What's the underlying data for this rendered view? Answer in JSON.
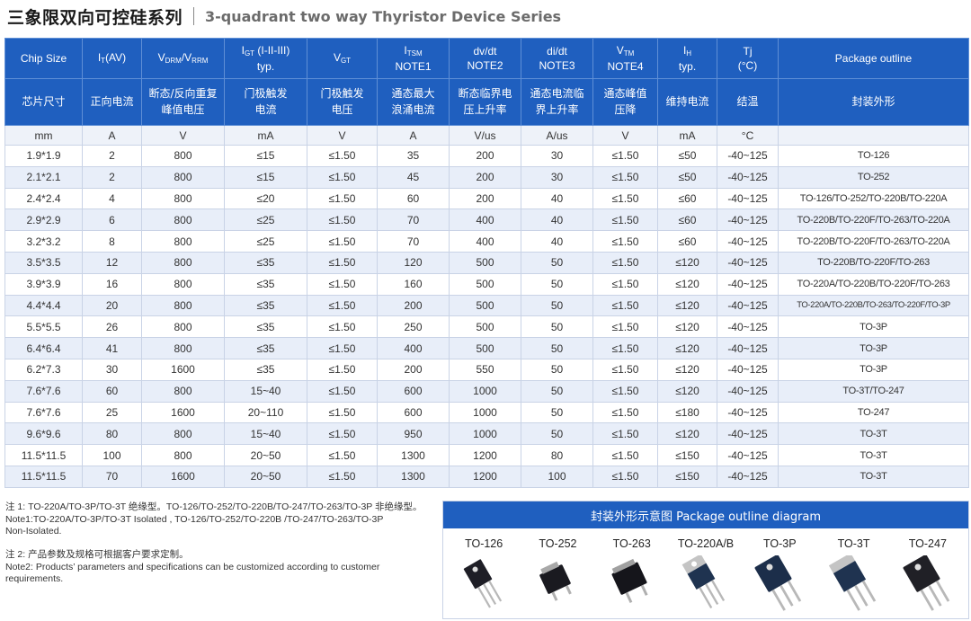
{
  "header": {
    "title_cn": "三象限双向可控硅系列",
    "title_en": "3-quadrant two way Thyristor Device Series"
  },
  "table": {
    "head_en": {
      "chip_size": "Chip Size",
      "it_main": "I",
      "it_sub": "T",
      "it_tail": "(AV)",
      "vdrm_main": "V",
      "vdrm_sub": "DRM",
      "vdrm_mid": "/V",
      "vdrm_sub2": "RRM",
      "igt_main": "I",
      "igt_sub": "GT",
      "igt_tail": " (I-II-III)",
      "igt_line2": "typ.",
      "vgt_main": "V",
      "vgt_sub": "GT",
      "itsm_main": "I",
      "itsm_sub": "TSM",
      "itsm_line2": "NOTE1",
      "dvdt": "dv/dt",
      "dvdt_line2": "NOTE2",
      "didt": "di/dt",
      "didt_line2": "NOTE3",
      "vtm_main": "V",
      "vtm_sub": "TM",
      "vtm_line2": "NOTE4",
      "ih_main": "I",
      "ih_sub": "H",
      "ih_line2": "typ.",
      "tj": "Tj",
      "tj_line2": "(°C)",
      "package": "Package outline"
    },
    "head_cn": {
      "chip_size": "芯片尺寸",
      "it": "正向电流",
      "vdrm_l1": "断态/反向重复",
      "vdrm_l2": "峰值电压",
      "igt_l1": "门极触发",
      "igt_l2": "电流",
      "vgt_l1": "门极触发",
      "vgt_l2": "电压",
      "itsm_l1": "通态最大",
      "itsm_l2": "浪涌电流",
      "dvdt_l1": "断态临界电",
      "dvdt_l2": "压上升率",
      "didt_l1": "通态电流临",
      "didt_l2": "界上升率",
      "vtm_l1": "通态峰值",
      "vtm_l2": "压降",
      "ih": "维持电流",
      "tj": "结温",
      "package": "封装外形"
    },
    "units": [
      "mm",
      "A",
      "V",
      "mA",
      "V",
      "A",
      "V/us",
      "A/us",
      "V",
      "mA",
      "°C",
      ""
    ],
    "rows": [
      [
        "1.9*1.9",
        "2",
        "800",
        "≤15",
        "≤1.50",
        "35",
        "200",
        "30",
        "≤1.50",
        "≤50",
        "-40~125",
        "TO-126"
      ],
      [
        "2.1*2.1",
        "2",
        "800",
        "≤15",
        "≤1.50",
        "45",
        "200",
        "30",
        "≤1.50",
        "≤50",
        "-40~125",
        "TO-252"
      ],
      [
        "2.4*2.4",
        "4",
        "800",
        "≤20",
        "≤1.50",
        "60",
        "200",
        "40",
        "≤1.50",
        "≤60",
        "-40~125",
        "TO-126/TO-252/TO-220B/TO-220A"
      ],
      [
        "2.9*2.9",
        "6",
        "800",
        "≤25",
        "≤1.50",
        "70",
        "400",
        "40",
        "≤1.50",
        "≤60",
        "-40~125",
        "TO-220B/TO-220F/TO-263/TO-220A"
      ],
      [
        "3.2*3.2",
        "8",
        "800",
        "≤25",
        "≤1.50",
        "70",
        "400",
        "40",
        "≤1.50",
        "≤60",
        "-40~125",
        "TO-220B/TO-220F/TO-263/TO-220A"
      ],
      [
        "3.5*3.5",
        "12",
        "800",
        "≤35",
        "≤1.50",
        "120",
        "500",
        "50",
        "≤1.50",
        "≤120",
        "-40~125",
        "TO-220B/TO-220F/TO-263"
      ],
      [
        "3.9*3.9",
        "16",
        "800",
        "≤35",
        "≤1.50",
        "160",
        "500",
        "50",
        "≤1.50",
        "≤120",
        "-40~125",
        "TO-220A/TO-220B/TO-220F/TO-263"
      ],
      [
        "4.4*4.4",
        "20",
        "800",
        "≤35",
        "≤1.50",
        "200",
        "500",
        "50",
        "≤1.50",
        "≤120",
        "-40~125",
        "TO-220A/TO-220B/TO-263/TO-220F/TO-3P"
      ],
      [
        "5.5*5.5",
        "26",
        "800",
        "≤35",
        "≤1.50",
        "250",
        "500",
        "50",
        "≤1.50",
        "≤120",
        "-40~125",
        "TO-3P"
      ],
      [
        "6.4*6.4",
        "41",
        "800",
        "≤35",
        "≤1.50",
        "400",
        "500",
        "50",
        "≤1.50",
        "≤120",
        "-40~125",
        "TO-3P"
      ],
      [
        "6.2*7.3",
        "30",
        "1600",
        "≤35",
        "≤1.50",
        "200",
        "550",
        "50",
        "≤1.50",
        "≤120",
        "-40~125",
        "TO-3P"
      ],
      [
        "7.6*7.6",
        "60",
        "800",
        "15~40",
        "≤1.50",
        "600",
        "1000",
        "50",
        "≤1.50",
        "≤120",
        "-40~125",
        "TO-3T/TO-247"
      ],
      [
        "7.6*7.6",
        "25",
        "1600",
        "20~110",
        "≤1.50",
        "600",
        "1000",
        "50",
        "≤1.50",
        "≤180",
        "-40~125",
        "TO-247"
      ],
      [
        "9.6*9.6",
        "80",
        "800",
        "15~40",
        "≤1.50",
        "950",
        "1000",
        "50",
        "≤1.50",
        "≤120",
        "-40~125",
        "TO-3T"
      ],
      [
        "11.5*11.5",
        "100",
        "800",
        "20~50",
        "≤1.50",
        "1300",
        "1200",
        "80",
        "≤1.50",
        "≤150",
        "-40~125",
        "TO-3T"
      ],
      [
        "11.5*11.5",
        "70",
        "1600",
        "20~50",
        "≤1.50",
        "1300",
        "1200",
        "100",
        "≤1.50",
        "≤150",
        "-40~125",
        "TO-3T"
      ]
    ]
  },
  "notes": {
    "note1_cn": "注 1: TO-220A/TO-3P/TO-3T 绝缘型。TO-126/TO-252/TO-220B/TO-247/TO-263/TO-3P 非绝缘型。",
    "note1_en_l1": "Note1:TO-220A/TO-3P/TO-3T Isolated , TO-126/TO-252/TO-220B /TO-247/TO-263/TO-3P",
    "note1_en_l2": "Non-Isolated.",
    "note2_cn": "注 2: 产品参数及规格可根据客户要求定制。",
    "note2_en_l1": "Note2: Products’ parameters and specifications can be customized according to customer",
    "note2_en_l2": "requirements."
  },
  "diagram": {
    "title": "封装外形示意图 Package outline diagram",
    "packages": [
      {
        "label": "TO-126",
        "icon": "to126-package-icon"
      },
      {
        "label": "TO-252",
        "icon": "to252-package-icon"
      },
      {
        "label": "TO-263",
        "icon": "to263-package-icon"
      },
      {
        "label": "TO-220A/B",
        "icon": "to220-package-icon"
      },
      {
        "label": "TO-3P",
        "icon": "to3p-package-icon"
      },
      {
        "label": "TO-3T",
        "icon": "to3t-package-icon"
      },
      {
        "label": "TO-247",
        "icon": "to247-package-icon"
      }
    ]
  },
  "colors": {
    "header_blue": "#1f5fbf",
    "row_alt": "#e8eef9",
    "unit_row": "#eef2f9",
    "border": "#c9d3e6"
  }
}
